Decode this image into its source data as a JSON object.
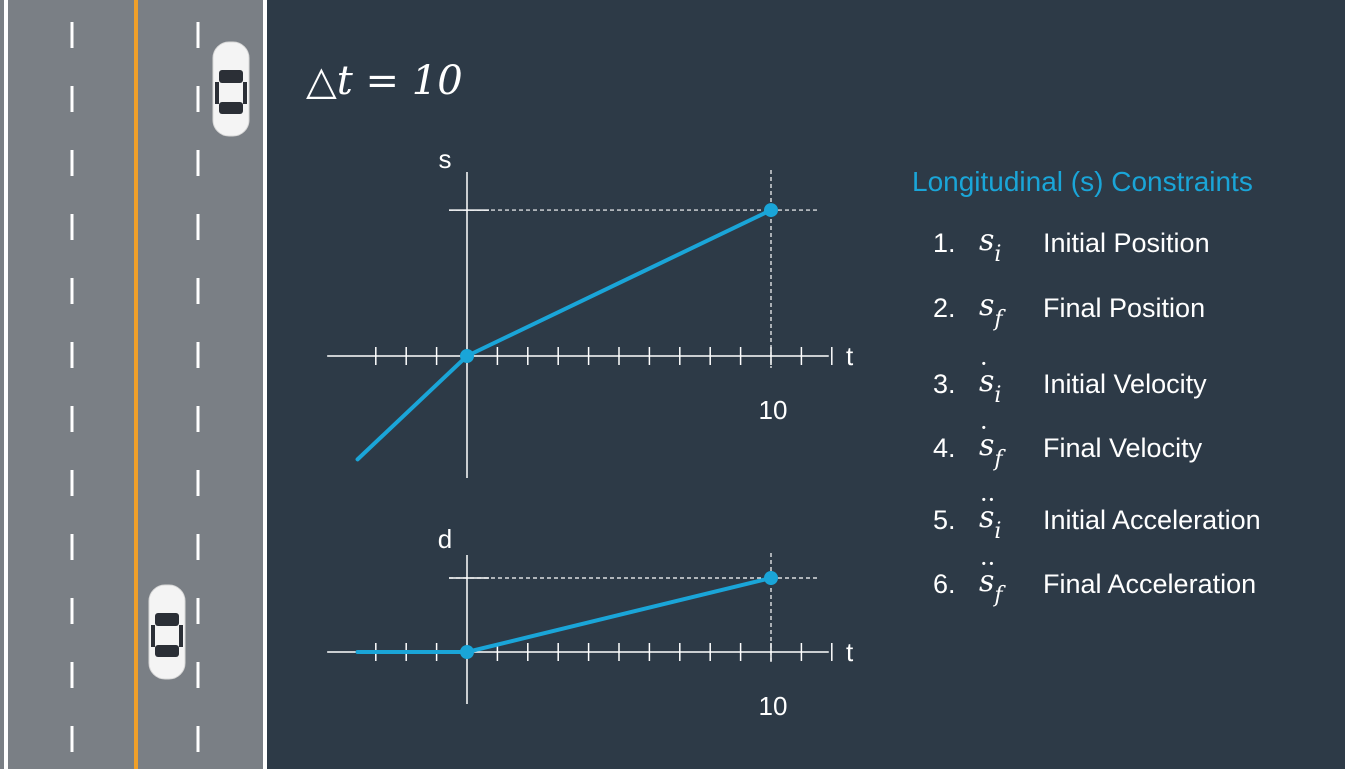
{
  "delta_t": {
    "symbol": "△t = 10"
  },
  "chart_data": [
    {
      "type": "line",
      "title": "",
      "ylabel": "s",
      "xlabel": "t",
      "x_tick_labels": [
        "10"
      ],
      "series": [
        {
          "x": [
            -3.6,
            0,
            10
          ],
          "y": [
            -3.4,
            0,
            4.8
          ]
        }
      ],
      "key_points": [
        {
          "x": 0,
          "y": 0
        },
        {
          "x": 10,
          "y": 4.8
        }
      ]
    },
    {
      "type": "line",
      "title": "",
      "ylabel": "d",
      "xlabel": "t",
      "x_tick_labels": [
        "10"
      ],
      "series": [
        {
          "x": [
            -3.6,
            0,
            10
          ],
          "y": [
            0,
            0,
            2.5
          ]
        }
      ],
      "key_points": [
        {
          "x": 0,
          "y": 0
        },
        {
          "x": 10,
          "y": 2.5
        }
      ]
    }
  ],
  "constraints": {
    "title": "Longitudinal (s) Constraints",
    "items": [
      {
        "num": "1.",
        "base": "s",
        "sub": "i",
        "dots": "",
        "label": "Initial Position"
      },
      {
        "num": "2.",
        "base": "s",
        "sub": "f",
        "dots": "",
        "label": "Final Position"
      },
      {
        "num": "3.",
        "base": "s",
        "sub": "i",
        "dots": "·",
        "label": "Initial Velocity"
      },
      {
        "num": "4.",
        "base": "s",
        "sub": "f",
        "dots": "·",
        "label": "Final Velocity"
      },
      {
        "num": "5.",
        "base": "s",
        "sub": "i",
        "dots": "··",
        "label": "Initial Acceleration"
      },
      {
        "num": "6.",
        "base": "s",
        "sub": "f",
        "dots": "··",
        "label": "Final Acceleration"
      }
    ]
  },
  "colors": {
    "background": "#2d3a47",
    "accent": "#1aa5d8",
    "road": "#7a7f85",
    "center_line": "#f0a02a",
    "lane_marking": "#ffffff"
  }
}
